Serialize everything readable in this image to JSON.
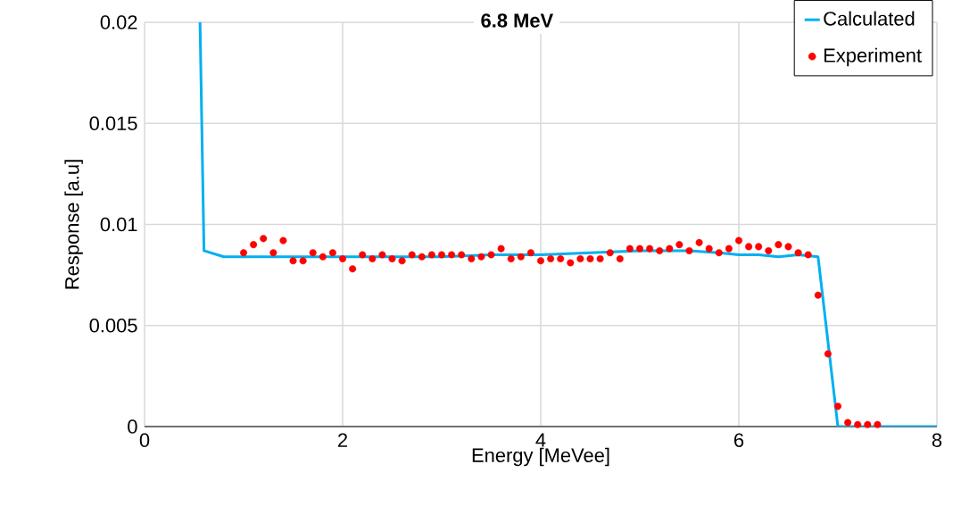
{
  "chart_data": {
    "type": "line",
    "title": "6.8 MeV",
    "xlabel": "Energy [MeVee]",
    "ylabel": "Response [a.u]",
    "xlim": [
      0,
      8
    ],
    "ylim": [
      0,
      0.02
    ],
    "xticks": [
      0,
      2,
      4,
      6,
      8
    ],
    "yticks": [
      0,
      0.005,
      0.01,
      0.015,
      0.02
    ],
    "grid": true,
    "legend": "top right",
    "series": [
      {
        "name": "Calculated",
        "color": "#00b0f0",
        "marker": "none",
        "line_style": "solid",
        "x": [
          0.56,
          0.6,
          0.8,
          1.0,
          1.5,
          2.0,
          2.5,
          3.0,
          3.5,
          4.0,
          4.5,
          5.0,
          5.5,
          5.8,
          6.0,
          6.2,
          6.4,
          6.6,
          6.8,
          7.0,
          7.5,
          8.0
        ],
        "values": [
          0.02,
          0.0087,
          0.0084,
          0.0084,
          0.0084,
          0.0084,
          0.0084,
          0.0084,
          0.0085,
          0.0085,
          0.0086,
          0.0087,
          0.0087,
          0.0086,
          0.0085,
          0.0085,
          0.0084,
          0.0085,
          0.0084,
          0,
          0,
          0
        ]
      },
      {
        "name": "Experiment",
        "type": "scatter",
        "color": "#ff0000",
        "marker": "circle",
        "x": [
          1.0,
          1.1,
          1.2,
          1.3,
          1.4,
          1.5,
          1.6,
          1.7,
          1.8,
          1.9,
          2.0,
          2.1,
          2.2,
          2.3,
          2.4,
          2.5,
          2.6,
          2.7,
          2.8,
          2.9,
          3.0,
          3.1,
          3.2,
          3.3,
          3.4,
          3.5,
          3.6,
          3.7,
          3.8,
          3.9,
          4.0,
          4.1,
          4.2,
          4.3,
          4.4,
          4.5,
          4.6,
          4.7,
          4.8,
          4.9,
          5.0,
          5.1,
          5.2,
          5.3,
          5.4,
          5.5,
          5.6,
          5.7,
          5.8,
          5.9,
          6.0,
          6.1,
          6.2,
          6.3,
          6.4,
          6.5,
          6.6,
          6.7,
          6.8,
          6.9,
          7.0,
          7.1,
          7.2,
          7.3,
          7.4
        ],
        "values": [
          0.0086,
          0.009,
          0.0093,
          0.0086,
          0.0092,
          0.0082,
          0.0082,
          0.0086,
          0.0084,
          0.0086,
          0.0083,
          0.0078,
          0.0085,
          0.0083,
          0.0085,
          0.0083,
          0.0082,
          0.0085,
          0.0084,
          0.0085,
          0.0085,
          0.0085,
          0.0085,
          0.0083,
          0.0084,
          0.0085,
          0.0088,
          0.0083,
          0.0084,
          0.0086,
          0.0082,
          0.0083,
          0.0083,
          0.0081,
          0.0083,
          0.0083,
          0.0083,
          0.0086,
          0.0083,
          0.0088,
          0.0088,
          0.0088,
          0.0087,
          0.0088,
          0.009,
          0.0087,
          0.0091,
          0.0088,
          0.0086,
          0.0088,
          0.0092,
          0.0089,
          0.0089,
          0.0087,
          0.009,
          0.0089,
          0.0086,
          0.0085,
          0.0065,
          0.0036,
          0.001,
          0.0002,
          0.0001,
          0.0001,
          0.0001
        ]
      }
    ]
  }
}
